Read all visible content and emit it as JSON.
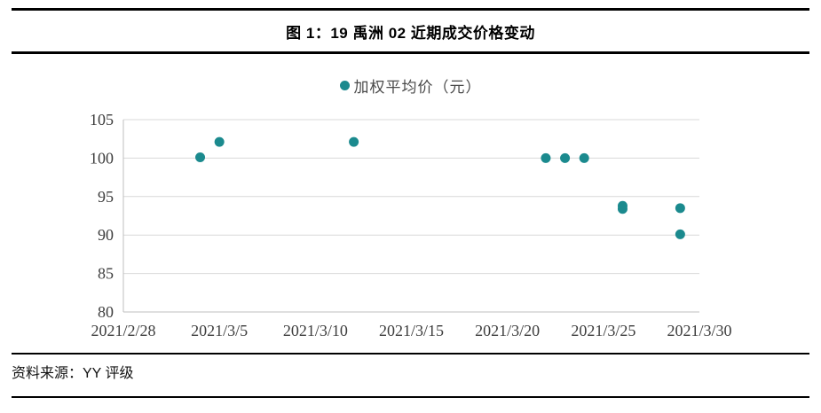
{
  "header": {
    "title": "图 1：19 禹洲 02 近期成交价格变动"
  },
  "chart_data": {
    "type": "scatter",
    "title": "19 禹洲 02 近期成交价格变动",
    "series": [
      {
        "name": "加权平均价（元）",
        "points": [
          {
            "date": "2021/3/4",
            "price": 100.1
          },
          {
            "date": "2021/3/5",
            "price": 102.1
          },
          {
            "date": "2021/3/12",
            "price": 102.1
          },
          {
            "date": "2021/3/22",
            "price": 100.0
          },
          {
            "date": "2021/3/23",
            "price": 100.0
          },
          {
            "date": "2021/3/24",
            "price": 100.0
          },
          {
            "date": "2021/3/26",
            "price": 93.8
          },
          {
            "date": "2021/3/26",
            "price": 93.4
          },
          {
            "date": "2021/3/29",
            "price": 93.5
          },
          {
            "date": "2021/3/29",
            "price": 90.1
          }
        ]
      }
    ],
    "xlabel": "",
    "ylabel": "",
    "xlim": [
      "2021/2/28",
      "2021/3/30"
    ],
    "ylim": [
      80,
      105
    ],
    "x_ticks": [
      "2021/2/28",
      "2021/3/5",
      "2021/3/10",
      "2021/3/15",
      "2021/3/20",
      "2021/3/25",
      "2021/3/30"
    ],
    "y_ticks": [
      105,
      100,
      95,
      90,
      85,
      80
    ],
    "grid": "horizontal",
    "legend_position": "top-center",
    "marker_color": "#1b8a8e",
    "gridline_color": "#d9d9d9",
    "axis_line_color": "#bfbfbf"
  },
  "footer": {
    "source": "资料来源：YY 评级"
  }
}
